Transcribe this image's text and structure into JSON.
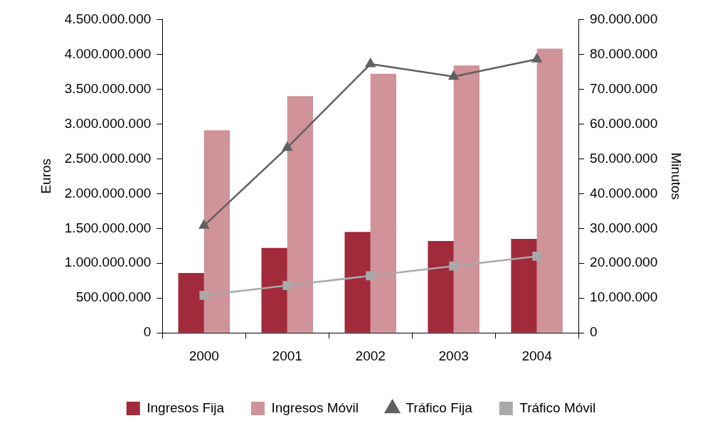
{
  "chart_data": {
    "type": "bar",
    "ylabel": "Euros",
    "y2label": "Minutos",
    "categories": [
      "2000",
      "2001",
      "2002",
      "2003",
      "2004"
    ],
    "series": [
      {
        "name": "Ingresos Fija",
        "color": "#a12a3b",
        "values": [
          860000000,
          1220000000,
          1450000000,
          1320000000,
          1350000000
        ]
      },
      {
        "name": "Ingresos Móvil",
        "color": "#cf9399",
        "values": [
          2910000000,
          3400000000,
          3720000000,
          3840000000,
          4080000000
        ]
      },
      {
        "name": "Tráfico Fija",
        "type": "line",
        "axis": "y2",
        "marker": "triangle",
        "color": "#606060",
        "values": [
          30800000,
          53200000,
          77200000,
          73600000,
          78600000
        ]
      },
      {
        "name": "Tráfico Móvil",
        "type": "line",
        "axis": "y2",
        "marker": "square",
        "color": "#a9a9a9",
        "values": [
          10800000,
          13600000,
          16400000,
          19200000,
          22000000
        ]
      }
    ],
    "ylim": [
      0,
      4500000000
    ],
    "yticks": [
      0,
      {
        "value": 500000000,
        "label": "500.000.000"
      },
      {
        "value": 1000000000,
        "label": "1.000.000.000"
      },
      {
        "value": 1500000000,
        "label": "1.500.000.000"
      },
      {
        "value": 2000000000,
        "label": "2.000.000.000"
      },
      {
        "value": 2500000000,
        "label": "2.500.000.000"
      },
      {
        "value": 3000000000,
        "label": "3.000.000.000"
      },
      {
        "value": 3500000000,
        "label": "3.500.000.000"
      },
      {
        "value": 4000000000,
        "label": "4.000.000.000"
      },
      {
        "value": 4500000000,
        "label": "4.500.000.000"
      }
    ],
    "y2lim": [
      0,
      90000000
    ],
    "y2ticks": [
      0,
      {
        "value": 10000000,
        "label": "10.000.000"
      },
      {
        "value": 20000000,
        "label": "20.000.000"
      },
      {
        "value": 30000000,
        "label": "30.000.000"
      },
      {
        "value": 40000000,
        "label": "40.000.000"
      },
      {
        "value": 50000000,
        "label": "50.000.000"
      },
      {
        "value": 60000000,
        "label": "60.000.000"
      },
      {
        "value": 70000000,
        "label": "70.000.000"
      },
      {
        "value": 80000000,
        "label": "80.000.000"
      },
      {
        "value": 90000000,
        "label": "90.000.000"
      }
    ],
    "grid": false,
    "legend": "bottom",
    "line_style": "solid"
  }
}
